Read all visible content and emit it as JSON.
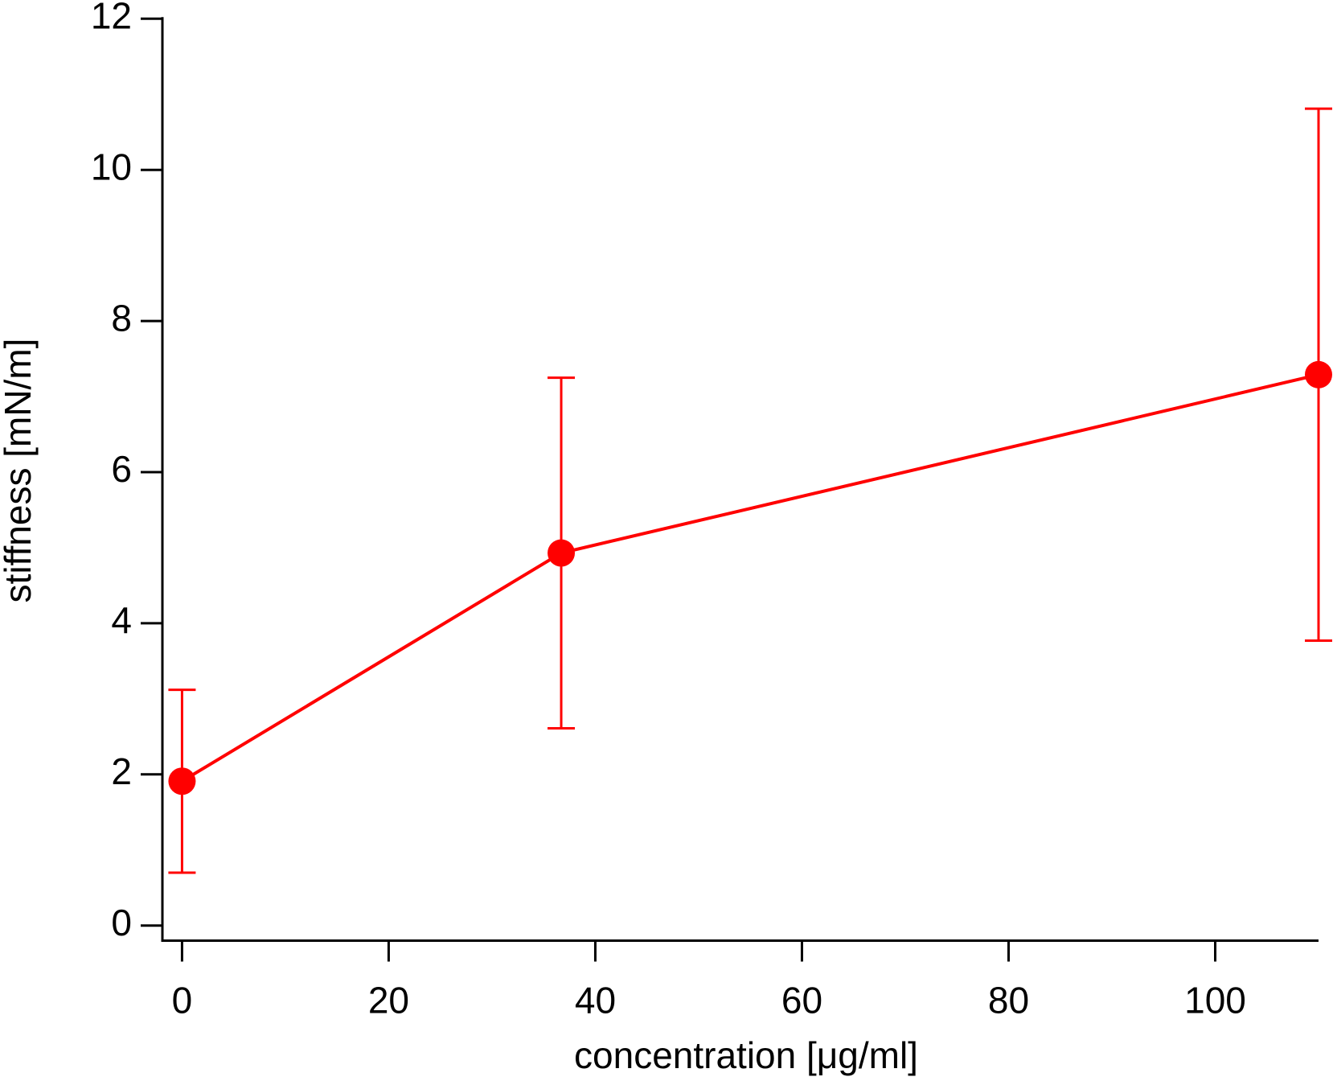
{
  "chart_data": {
    "type": "line",
    "x_label": "concentration [μg/ml]",
    "y_label": "stiffness [mN/m]",
    "x": [
      0,
      36.7,
      110
    ],
    "series": [
      {
        "color": "#ff0000",
        "values": [
          1.91,
          4.93,
          7.29
        ],
        "errors": [
          1.21,
          2.32,
          3.52
        ]
      }
    ],
    "xlim": [
      -1.9,
      110
    ],
    "xticks": [
      0,
      20,
      40,
      60,
      80,
      100
    ],
    "ylim": [
      -0.2,
      12
    ],
    "yticks": [
      0,
      2,
      4,
      6,
      8,
      10,
      12
    ]
  }
}
